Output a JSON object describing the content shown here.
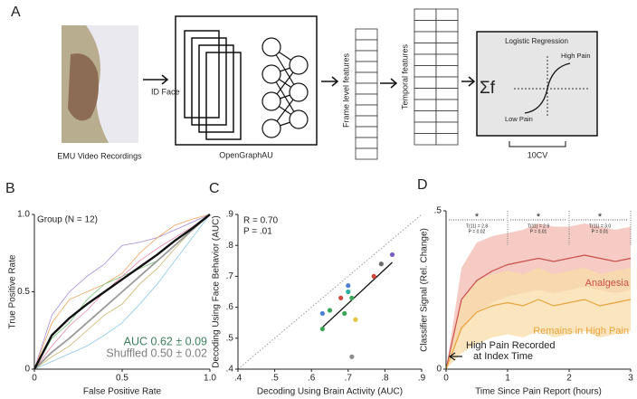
{
  "diagram": {
    "label": "A",
    "image_caption": "EMU Video Recordings",
    "step1": "ID Face",
    "model": "OpenGraphAU",
    "frame_features": "Frame level features",
    "temporal_features": "Temporal features",
    "classifier": {
      "title": "Logistic Regression",
      "formula": "Σf",
      "high": "High Pain",
      "low": "Low Pain"
    },
    "cv": "10CV"
  },
  "chart_data": [
    {
      "type": "line",
      "label": "B",
      "title": "Group (N = 12)",
      "x_label": "False Positive Rate",
      "y_label": "True Positive Rate",
      "xlim": [
        0,
        1
      ],
      "ylim": [
        0,
        1
      ],
      "xticks": [
        0,
        0.5,
        {
          "value": 1,
          "label": "1.0"
        }
      ],
      "yticks": [
        0,
        0.5,
        {
          "value": 1,
          "label": "1.0"
        }
      ],
      "annotations": [
        "AUC 0.62 ± 0.09",
        "Shuffled 0.50 ± 0.02"
      ],
      "annotation_colors": [
        "#3d7f5e",
        "#7f7f7f"
      ],
      "x": [
        0,
        0.1,
        0.2,
        0.3,
        0.4,
        0.5,
        0.6,
        0.7,
        0.8,
        0.9,
        1
      ],
      "series": [
        {
          "color": "#a58bd6",
          "width": 0.8,
          "values": [
            0,
            0.35,
            0.5,
            0.6,
            0.68,
            0.8,
            0.82,
            0.85,
            0.9,
            0.95,
            1
          ]
        },
        {
          "color": "#f0a35c",
          "width": 0.8,
          "values": [
            0,
            0.3,
            0.45,
            0.5,
            0.55,
            0.62,
            0.75,
            0.85,
            0.93,
            0.97,
            1
          ]
        },
        {
          "color": "#8fc9e8",
          "width": 0.8,
          "values": [
            0,
            0.05,
            0.1,
            0.15,
            0.22,
            0.3,
            0.42,
            0.55,
            0.7,
            0.85,
            1
          ]
        },
        {
          "color": "#7cc47c",
          "width": 0.8,
          "values": [
            0,
            0.2,
            0.3,
            0.45,
            0.55,
            0.6,
            0.65,
            0.7,
            0.8,
            0.9,
            1
          ]
        },
        {
          "color": "#e889a8",
          "width": 0.8,
          "values": [
            0,
            0.15,
            0.28,
            0.38,
            0.5,
            0.6,
            0.7,
            0.78,
            0.85,
            0.92,
            1
          ]
        },
        {
          "color": "#c7b56a",
          "width": 0.8,
          "values": [
            0,
            0.08,
            0.15,
            0.25,
            0.35,
            0.42,
            0.55,
            0.65,
            0.78,
            0.9,
            1
          ]
        },
        {
          "color": "#9a9a9a",
          "width": 1.8,
          "values": [
            0,
            0.11,
            0.2,
            0.3,
            0.4,
            0.5,
            0.6,
            0.7,
            0.8,
            0.9,
            1
          ]
        },
        {
          "color": "#111111",
          "width": 2.4,
          "values": [
            0,
            0.22,
            0.33,
            0.42,
            0.5,
            0.58,
            0.66,
            0.74,
            0.83,
            0.91,
            1
          ]
        }
      ]
    },
    {
      "type": "scatter",
      "label": "C",
      "x_label": "Decoding Using Brain Activity (AUC)",
      "y_label": "Decoding Using Face Behavior (AUC)",
      "xlim": [
        0.4,
        0.9
      ],
      "ylim": [
        0.4,
        0.9
      ],
      "xticks": [
        {
          "value": 0.4,
          "label": ".4"
        },
        {
          "value": 0.5,
          "label": ".5"
        },
        {
          "value": 0.6,
          "label": ".6"
        },
        {
          "value": 0.7,
          "label": ".7"
        },
        {
          "value": 0.8,
          "label": ".8"
        },
        {
          "value": 0.9,
          "label": ".9"
        }
      ],
      "yticks": [
        {
          "value": 0.4,
          "label": ".4"
        },
        {
          "value": 0.5,
          "label": ".5"
        },
        {
          "value": 0.6,
          "label": ".6"
        },
        {
          "value": 0.7,
          "label": ".7"
        },
        {
          "value": 0.8,
          "label": ".8"
        },
        {
          "value": 0.9,
          "label": ".9"
        }
      ],
      "annotations": [
        "R = 0.70",
        "P = .01"
      ],
      "x": [
        0.63,
        0.63,
        0.65,
        0.68,
        0.69,
        0.7,
        0.7,
        0.71,
        0.72,
        0.71,
        0.77,
        0.79,
        0.82
      ],
      "y": [
        0.58,
        0.53,
        0.59,
        0.63,
        0.58,
        0.67,
        0.65,
        0.63,
        0.56,
        0.44,
        0.7,
        0.74,
        0.77
      ],
      "colors": [
        "#4f7fd0",
        "#3aa655",
        "#3aa655",
        "#d2473b",
        "#3aa655",
        "#4f7fd0",
        "#2ab0a0",
        "#3aa655",
        "#e8c23a",
        "#8a8a8a",
        "#d2473b",
        "#6a6a6a",
        "#7b5cc4"
      ],
      "fit_line": {
        "x": [
          0.63,
          0.82
        ],
        "y": [
          0.535,
          0.745
        ]
      }
    },
    {
      "type": "line",
      "label": "D",
      "x_label": "Time Since Pain Report (hours)",
      "y_label": "Classifier Signal (Rel. Change)",
      "xlim": [
        0,
        3
      ],
      "ylim": [
        0,
        0.5
      ],
      "xticks": [
        0,
        1,
        2,
        3
      ],
      "yticks": [
        0,
        {
          "value": 0.5,
          "label": ".5"
        }
      ],
      "x": [
        0,
        0.25,
        0.5,
        0.75,
        1,
        1.25,
        1.5,
        1.75,
        2,
        2.25,
        2.5,
        2.75,
        3
      ],
      "series": [
        {
          "name": "Analgesia",
          "color": "#c9504a",
          "band_color": "#f2b9b0",
          "width": 1.2,
          "values": [
            0,
            0.22,
            0.28,
            0.31,
            0.33,
            0.34,
            0.35,
            0.34,
            0.35,
            0.36,
            0.35,
            0.34,
            0.35
          ],
          "upper": [
            0,
            0.32,
            0.4,
            0.42,
            0.43,
            0.44,
            0.46,
            0.45,
            0.45,
            0.46,
            0.45,
            0.44,
            0.45
          ],
          "lower": [
            0,
            0.12,
            0.18,
            0.21,
            0.23,
            0.24,
            0.25,
            0.24,
            0.25,
            0.26,
            0.25,
            0.24,
            0.25
          ]
        },
        {
          "name": "Remains in High Pain",
          "color": "#e8a33d",
          "band_color": "#f8dca8",
          "width": 1.2,
          "values": [
            0,
            0.13,
            0.18,
            0.2,
            0.21,
            0.2,
            0.22,
            0.2,
            0.21,
            0.22,
            0.2,
            0.21,
            0.22
          ],
          "upper": [
            0,
            0.22,
            0.28,
            0.3,
            0.31,
            0.3,
            0.32,
            0.3,
            0.31,
            0.32,
            0.3,
            0.31,
            0.32
          ],
          "lower": [
            0,
            0.05,
            0.08,
            0.1,
            0.11,
            0.1,
            0.12,
            0.1,
            0.11,
            0.12,
            0.1,
            0.11,
            0.12
          ]
        }
      ],
      "significance": [
        {
          "interval": [
            0,
            1
          ],
          "star": "*",
          "lines": [
            "T(11) = 2.8",
            "P = 0.02"
          ]
        },
        {
          "interval": [
            1,
            2
          ],
          "star": "*",
          "lines": [
            "T(11) = 2.9",
            "P = 0.01"
          ]
        },
        {
          "interval": [
            2,
            3
          ],
          "star": "*",
          "lines": [
            "T(11) = 3.0",
            "P = 0.01"
          ]
        }
      ],
      "annotation_lines": [
        "High Pain Recorded",
        "at Index Time"
      ]
    }
  ]
}
